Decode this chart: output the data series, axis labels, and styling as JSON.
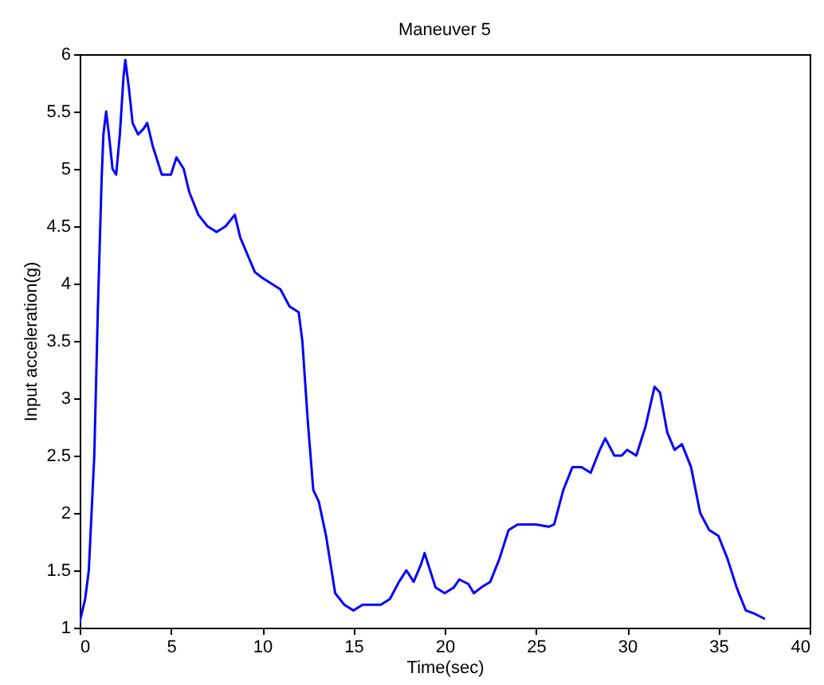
{
  "chart_data": {
    "type": "line",
    "title": "Maneuver 5",
    "xlabel": "Time(sec)",
    "ylabel": "Input acceleration(g)",
    "x": [
      0,
      0.3,
      0.5,
      0.8,
      1.0,
      1.2,
      1.3,
      1.45,
      1.6,
      1.8,
      2.0,
      2.2,
      2.4,
      2.5,
      2.7,
      2.9,
      3.2,
      3.5,
      3.7,
      4.0,
      4.5,
      5.0,
      5.3,
      5.7,
      6.0,
      6.5,
      7.0,
      7.5,
      8.0,
      8.5,
      8.8,
      9.2,
      9.6,
      10.0,
      10.5,
      11.0,
      11.5,
      12.0,
      12.2,
      12.5,
      12.8,
      13.1,
      13.5,
      14.0,
      14.5,
      15.0,
      15.5,
      16.0,
      16.5,
      17.0,
      17.5,
      17.9,
      18.3,
      18.7,
      18.9,
      19.2,
      19.5,
      20.0,
      20.5,
      20.8,
      21.3,
      21.6,
      22.0,
      22.5,
      23.0,
      23.5,
      24.0,
      25.0,
      25.7,
      26.0,
      26.5,
      27.0,
      27.5,
      28.0,
      28.5,
      28.8,
      29.3,
      29.7,
      30.0,
      30.5,
      31.0,
      31.5,
      31.8,
      32.2,
      32.6,
      33.0,
      33.5,
      34.0,
      34.5,
      35.0,
      35.5,
      36.0,
      36.5,
      37.0,
      37.5
    ],
    "series": [
      {
        "color": "#0000ff",
        "values": [
          1.05,
          1.25,
          1.5,
          2.5,
          3.8,
          4.9,
          5.3,
          5.5,
          5.3,
          5.0,
          4.95,
          5.3,
          5.8,
          5.95,
          5.7,
          5.4,
          5.3,
          5.35,
          5.4,
          5.2,
          4.95,
          4.95,
          5.1,
          5.0,
          4.8,
          4.6,
          4.5,
          4.45,
          4.5,
          4.6,
          4.4,
          4.25,
          4.1,
          4.05,
          4.0,
          3.95,
          3.8,
          3.75,
          3.5,
          2.8,
          2.2,
          2.1,
          1.8,
          1.3,
          1.2,
          1.15,
          1.2,
          1.2,
          1.2,
          1.25,
          1.4,
          1.5,
          1.4,
          1.55,
          1.65,
          1.5,
          1.35,
          1.3,
          1.35,
          1.42,
          1.38,
          1.3,
          1.35,
          1.4,
          1.6,
          1.85,
          1.9,
          1.9,
          1.88,
          1.9,
          2.2,
          2.4,
          2.4,
          2.35,
          2.55,
          2.65,
          2.5,
          2.5,
          2.55,
          2.5,
          2.75,
          3.1,
          3.05,
          2.7,
          2.55,
          2.6,
          2.4,
          2.0,
          1.85,
          1.8,
          1.6,
          1.35,
          1.15,
          1.12,
          1.08
        ]
      }
    ],
    "xlim": [
      0,
      40
    ],
    "xticks": [
      0,
      5,
      10,
      15,
      20,
      25,
      30,
      35,
      40
    ],
    "ylim": [
      1,
      6
    ],
    "yticks": [
      1,
      1.5,
      2,
      2.5,
      3,
      3.5,
      4,
      4.5,
      5,
      5.5,
      6
    ],
    "grid": false
  }
}
